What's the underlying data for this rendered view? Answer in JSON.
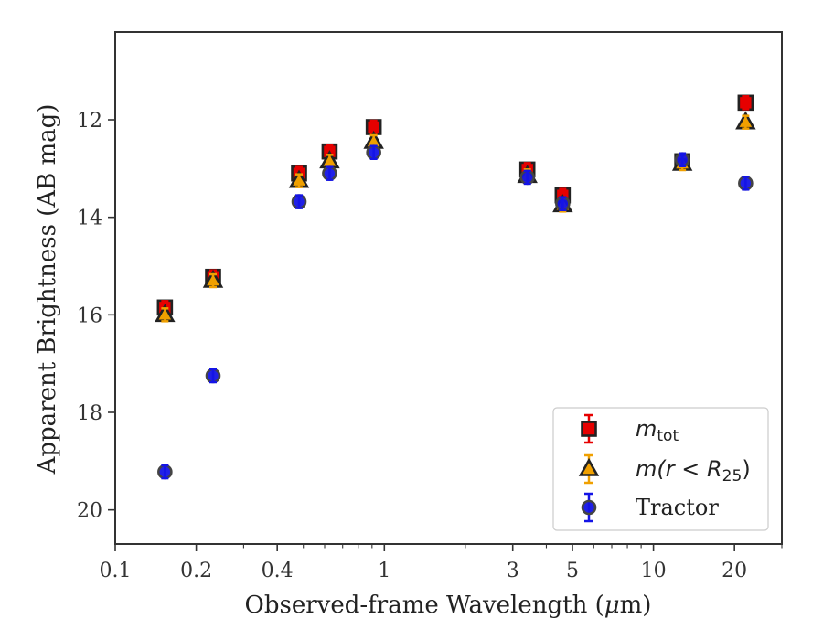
{
  "chart_data": {
    "type": "scatter",
    "xlabel_prefix": "Observed-frame Wavelength (",
    "xlabel_mu": "μ",
    "xlabel_suffix": "m)",
    "ylabel": "Apparent Brightness (AB mag)",
    "x_scale": "log",
    "y_inverted": true,
    "xlim": [
      0.1,
      30
    ],
    "ylim": [
      20.7,
      10.2
    ],
    "x_ticks": [
      {
        "value": 0.1,
        "label": "0.1"
      },
      {
        "value": 0.2,
        "label": "0.2"
      },
      {
        "value": 0.4,
        "label": "0.4"
      },
      {
        "value": 1,
        "label": "1"
      },
      {
        "value": 3,
        "label": "3"
      },
      {
        "value": 5,
        "label": "5"
      },
      {
        "value": 10,
        "label": "10"
      },
      {
        "value": 20,
        "label": "20"
      }
    ],
    "y_ticks": [
      {
        "value": 12,
        "label": "12"
      },
      {
        "value": 14,
        "label": "14"
      },
      {
        "value": 16,
        "label": "16"
      },
      {
        "value": 18,
        "label": "18"
      },
      {
        "value": 20,
        "label": "20"
      }
    ],
    "grid": false,
    "legend_position": "lower-right",
    "series": [
      {
        "key": "mtot",
        "legend_main": "m",
        "legend_sub": "tot",
        "marker": "square",
        "face_color": "#e60000",
        "edge_color": "#222222",
        "error_color": "#e60000",
        "x": [
          0.153,
          0.231,
          0.482,
          0.626,
          0.913,
          3.4,
          4.6,
          12.8,
          22.0
        ],
        "y": [
          15.85,
          15.22,
          13.1,
          12.65,
          12.15,
          13.02,
          13.55,
          12.85,
          11.65
        ]
      },
      {
        "key": "mr25",
        "legend_main": "m",
        "legend_rest": "(r < R",
        "legend_sub": "25",
        "legend_close": ")",
        "marker": "triangle",
        "face_color": "#f0a000",
        "edge_color": "#222222",
        "error_color": "#f0a000",
        "x": [
          0.153,
          0.231,
          0.482,
          0.626,
          0.913,
          3.4,
          4.6,
          12.8,
          22.0
        ],
        "y": [
          16.0,
          15.3,
          13.25,
          12.85,
          12.45,
          13.15,
          13.75,
          12.9,
          12.05
        ]
      },
      {
        "key": "tractor",
        "legend_label": "Tractor",
        "marker": "circle",
        "face_color": "#1414e6",
        "edge_color": "#444444",
        "error_color": "#1414e6",
        "x": [
          0.153,
          0.231,
          0.482,
          0.626,
          0.913,
          3.4,
          4.6,
          12.8,
          22.0
        ],
        "y": [
          19.22,
          17.25,
          13.68,
          13.1,
          12.67,
          13.18,
          13.72,
          12.82,
          13.3
        ]
      }
    ]
  }
}
